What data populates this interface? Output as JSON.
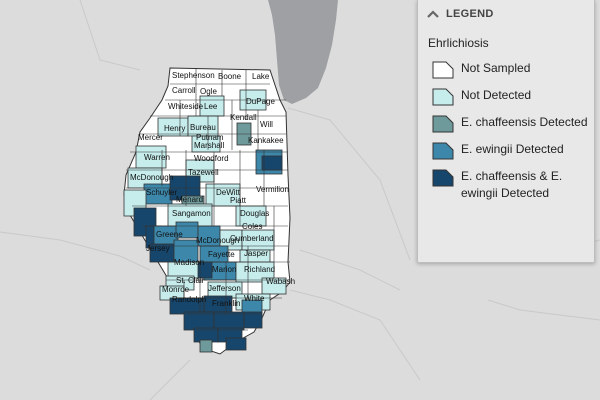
{
  "legend": {
    "header": "LEGEND",
    "subtitle": "Ehrlichiosis",
    "items": [
      {
        "label": "Not Sampled",
        "color": "#ffffff"
      },
      {
        "label": "Not Detected",
        "color": "#c6ecec"
      },
      {
        "label": "E. chaffeensis Detected",
        "color": "#6f9a9c"
      },
      {
        "label": "E. ewingii Detected",
        "color": "#3d87ab"
      },
      {
        "label": "E. chaffeensis & E. ewingii Detected",
        "color": "#17466c"
      }
    ]
  },
  "counties": [
    {
      "name": "Stephenson",
      "status": "Not Sampled"
    },
    {
      "name": "Boone",
      "status": "Not Sampled"
    },
    {
      "name": "Lake",
      "status": "Not Sampled"
    },
    {
      "name": "Carroll",
      "status": "Not Sampled"
    },
    {
      "name": "Ogle",
      "status": "Not Sampled"
    },
    {
      "name": "Whiteside",
      "status": "Not Sampled"
    },
    {
      "name": "Lee",
      "status": "Not Detected"
    },
    {
      "name": "DuPage",
      "status": "Not Detected"
    },
    {
      "name": "Kendall",
      "status": "Not Sampled"
    },
    {
      "name": "Will",
      "status": "Not Sampled"
    },
    {
      "name": "Henry",
      "status": "Not Detected"
    },
    {
      "name": "Bureau",
      "status": "Not Detected"
    },
    {
      "name": "Putnam",
      "status": "Not Sampled"
    },
    {
      "name": "Mercer",
      "status": "Not Sampled"
    },
    {
      "name": "Marshall",
      "status": "Not Detected"
    },
    {
      "name": "Kankakee",
      "status": "Not Sampled"
    },
    {
      "name": "Warren",
      "status": "Not Detected"
    },
    {
      "name": "Woodford",
      "status": "Not Sampled"
    },
    {
      "name": "McDonough",
      "status": "Not Detected"
    },
    {
      "name": "Tazewell",
      "status": "Not Detected"
    },
    {
      "name": "Schuyler",
      "status": "E. ewingii Detected"
    },
    {
      "name": "Menard",
      "status": "E. chaffeensis & E. ewingii Detected"
    },
    {
      "name": "DeWitt",
      "status": "Not Detected"
    },
    {
      "name": "Piatt",
      "status": "Not Sampled"
    },
    {
      "name": "Vermilion",
      "status": "Not Sampled"
    },
    {
      "name": "Sangamon",
      "status": "Not Detected"
    },
    {
      "name": "Douglas",
      "status": "Not Sampled"
    },
    {
      "name": "Greene",
      "status": "E. ewingii Detected"
    },
    {
      "name": "Jersey",
      "status": "E. chaffeensis & E. ewingii Detected"
    },
    {
      "name": "Coles",
      "status": "Not Sampled"
    },
    {
      "name": "Cumberland",
      "status": "Not Detected"
    },
    {
      "name": "McDonough",
      "status": "Not Detected"
    },
    {
      "name": "Madison",
      "status": "Not Sampled"
    },
    {
      "name": "Fayette",
      "status": "E. ewingii Detected"
    },
    {
      "name": "Jasper",
      "status": "Not Detected"
    },
    {
      "name": "Marion",
      "status": "E. ewingii Detected"
    },
    {
      "name": "Richland",
      "status": "Not Detected"
    },
    {
      "name": "St. Clair",
      "status": "Not Sampled"
    },
    {
      "name": "Jefferson",
      "status": "Not Detected"
    },
    {
      "name": "Wabash",
      "status": "Not Detected"
    },
    {
      "name": "Monroe",
      "status": "Not Sampled"
    },
    {
      "name": "Randolph",
      "status": "E. chaffeensis & E. ewingii Detected"
    },
    {
      "name": "Franklin",
      "status": "E. chaffeensis & E. ewingii Detected"
    },
    {
      "name": "White",
      "status": "Not Detected"
    }
  ]
}
